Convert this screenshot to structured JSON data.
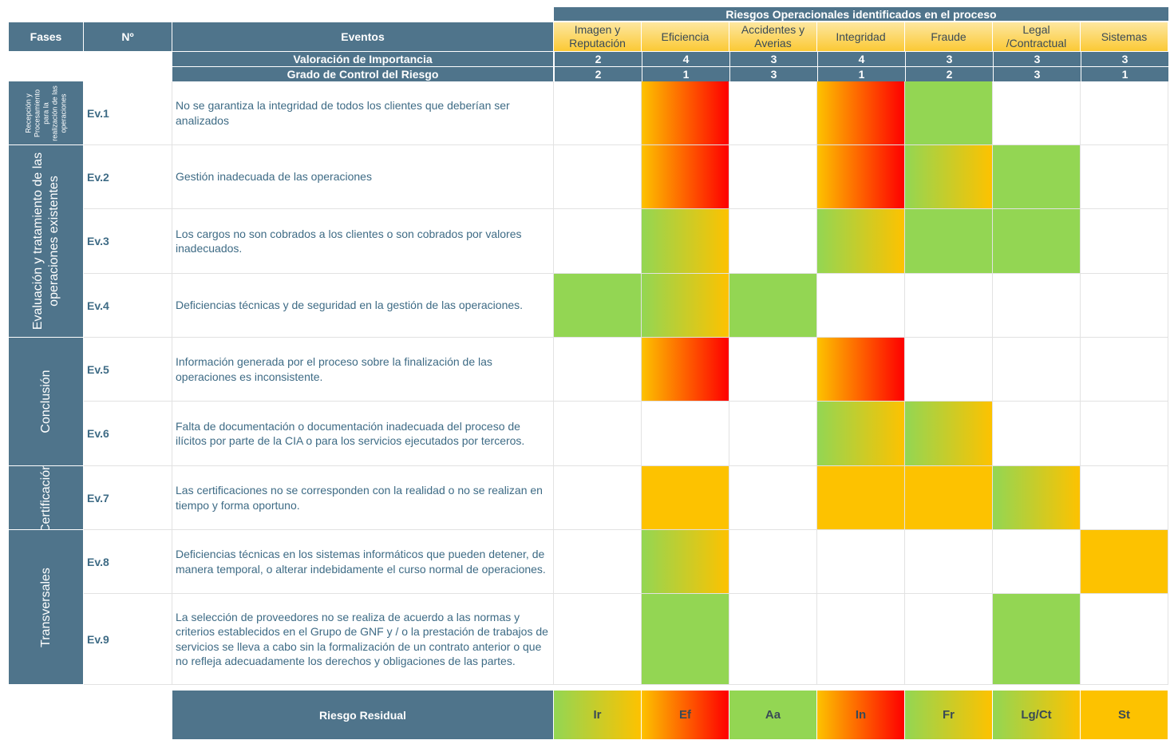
{
  "header": {
    "group_title": "Riesgos Operacionales identificados en el proceso",
    "fases": "Fases",
    "numero": "Nº",
    "eventos": "Eventos"
  },
  "risk_categories": [
    {
      "l1": "Imagen y",
      "l2": "Reputación",
      "importance": "2",
      "control": "2",
      "residual": "Ir",
      "residual_level": "gy"
    },
    {
      "l1": "Eficiencia",
      "l2": "",
      "importance": "4",
      "control": "1",
      "residual": "Ef",
      "residual_level": "yr"
    },
    {
      "l1": "Accidentes y",
      "l2": "Averias",
      "importance": "3",
      "control": "3",
      "residual": "Aa",
      "residual_level": "g"
    },
    {
      "l1": "Integridad",
      "l2": "",
      "importance": "4",
      "control": "1",
      "residual": "In",
      "residual_level": "yr"
    },
    {
      "l1": "Fraude",
      "l2": "",
      "importance": "3",
      "control": "2",
      "residual": "Fr",
      "residual_level": "gy"
    },
    {
      "l1": "Legal",
      "l2": "/Contractual",
      "importance": "3",
      "control": "3",
      "residual": "Lg/Ct",
      "residual_level": "gy"
    },
    {
      "l1": "Sistemas",
      "l2": "",
      "importance": "3",
      "control": "1",
      "residual": "St",
      "residual_level": "y"
    }
  ],
  "valoracion_label": "Valoración de Importancia",
  "grado_label": "Grado de Control del Riesgo",
  "phases": [
    {
      "lines": [
        "Recepción y",
        "Procesamiento",
        "para la",
        "realización de las",
        "operaciones"
      ]
    },
    {
      "lines": [
        "Evaluación y tratamiento de las",
        "operaciones existentes"
      ]
    },
    {
      "lines": [
        "Conclusión"
      ]
    },
    {
      "lines": [
        "Certificación"
      ]
    },
    {
      "lines": [
        "Transversales"
      ]
    }
  ],
  "events": [
    {
      "id": "Ev.1",
      "text": "No se garantiza la integridad de todos los clientes que deberían ser analizados",
      "risks": [
        "",
        "yr",
        "",
        "yr",
        "g",
        "",
        ""
      ]
    },
    {
      "id": "Ev.2",
      "text": "Gestión inadecuada de las operaciones",
      "risks": [
        "",
        "yr",
        "",
        "yr",
        "gy",
        "g",
        ""
      ]
    },
    {
      "id": "Ev.3",
      "text": "Los cargos no son cobrados a los clientes o son cobrados por valores inadecuados.",
      "risks": [
        "",
        "gy",
        "",
        "gy",
        "g",
        "g",
        ""
      ]
    },
    {
      "id": "Ev.4",
      "text": "Deficiencias técnicas y de seguridad en la gestión de las operaciones.",
      "risks": [
        "g",
        "gy",
        "g",
        "",
        "",
        "",
        ""
      ]
    },
    {
      "id": "Ev.5",
      "text": "Información generada por el proceso sobre la finalización de las operaciones es inconsistente.",
      "risks": [
        "",
        "yr",
        "",
        "yr",
        "",
        "",
        ""
      ]
    },
    {
      "id": "Ev.6",
      "text": "Falta de documentación o documentación inadecuada del proceso de ilícitos por parte de la CIA o para los servicios ejecutados por terceros.",
      "risks": [
        "",
        "",
        "",
        "gy",
        "gy",
        "",
        ""
      ]
    },
    {
      "id": "Ev.7",
      "text": "Las certificaciones no se corresponden con la realidad o no se realizan en tiempo y forma oportuno.",
      "risks": [
        "",
        "y",
        "",
        "y",
        "y",
        "gy",
        ""
      ]
    },
    {
      "id": "Ev.8",
      "text": "Deficiencias técnicas en los sistemas informáticos que pueden detener, de manera temporal, o alterar indebidamente el curso normal de operaciones.",
      "risks": [
        "",
        "gy",
        "",
        "",
        "",
        "",
        "y"
      ]
    },
    {
      "id": "Ev.9",
      "text": "La selección de proveedores no se realiza de acuerdo a las normas y criterios establecidos en el Grupo de GNF y / o la prestación de trabajos de servicios se lleva a cabo sin la formalización de un contrato anterior o que no refleja adecuadamente los derechos y obligaciones de las partes.",
      "risks": [
        "",
        "g",
        "",
        "",
        "",
        "g",
        ""
      ]
    }
  ],
  "residual_label": "Riesgo Residual",
  "colors": {
    "header": "#4f748b",
    "green": "#93d653",
    "yellow": "#fdc200",
    "red": "#fe0000"
  }
}
